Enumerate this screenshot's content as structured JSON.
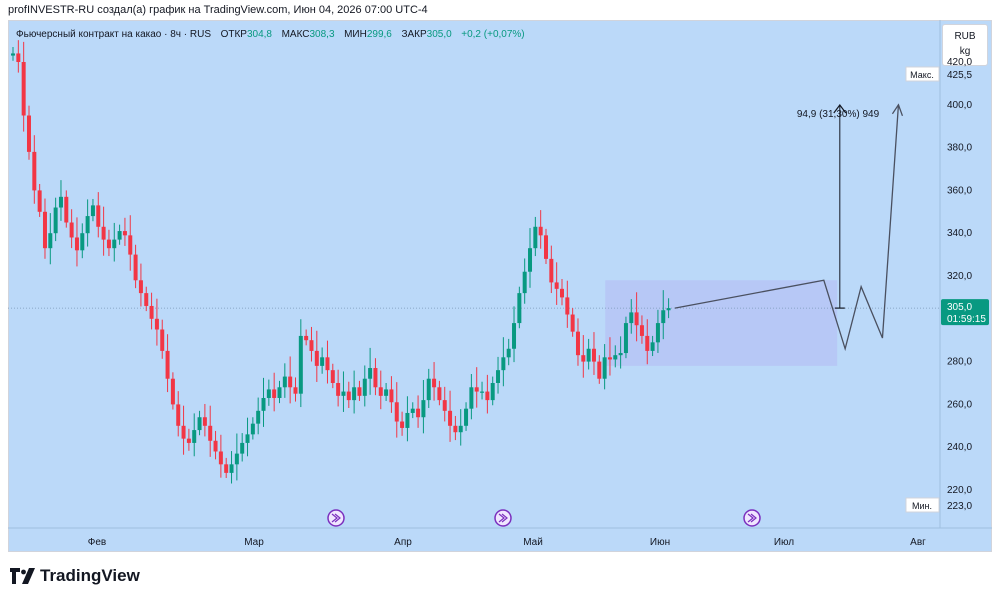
{
  "attribution": "profINVESTR-RU создал(а) график на TradingView.com, Июн 04, 2026 07:00 UTC-4",
  "legend": {
    "title": "Фьючерсный контракт на какао · 8ч · RUS",
    "open_label": "ОТКР",
    "open_value": "304,8",
    "high_label": "МАКС",
    "high_value": "308,3",
    "low_label": "МИН",
    "low_value": "299,6",
    "close_label": "ЗАКР",
    "close_value": "305,0",
    "change": "+0,2 (+0,07%)"
  },
  "units": {
    "currency": "RUB",
    "unit": "kg"
  },
  "brand": "TradingView",
  "colors": {
    "background": "#bbd9f9",
    "up": "#089981",
    "down": "#f23645",
    "last_price": "#089981",
    "projection_box": "#b7c3f5",
    "scale_tag": "#ffffff"
  },
  "icons": [
    "play-forward-icon",
    "play-forward-icon",
    "play-forward-icon",
    "tradingview-logo-icon"
  ],
  "chart_data": {
    "type": "candlestick",
    "timeframe": "8ч",
    "ylim": [
      223,
      430
    ],
    "y_ticks": [
      "420,0",
      "400,0",
      "380,0",
      "360,0",
      "340,0",
      "320,0",
      "300,0",
      "280,0",
      "260,0",
      "240,0",
      "220,0"
    ],
    "x_ticks": [
      "Фев",
      "Мар",
      "Апр",
      "Май",
      "Июн",
      "Июл",
      "Авг"
    ],
    "max_label": "Макс.",
    "max_value": "425,5",
    "min_label": "Мин.",
    "min_value": "223,0",
    "last_price": "305,0",
    "countdown": "01:59:15",
    "price_path": [
      [
        0,
        423
      ],
      [
        2,
        424
      ],
      [
        3,
        420
      ],
      [
        4,
        395
      ],
      [
        5,
        378
      ],
      [
        6,
        360
      ],
      [
        7,
        350
      ],
      [
        8,
        333
      ],
      [
        9,
        340
      ],
      [
        10,
        352
      ],
      [
        11,
        357
      ],
      [
        12,
        345
      ],
      [
        13,
        338
      ],
      [
        14,
        332
      ],
      [
        15,
        340
      ],
      [
        16,
        348
      ],
      [
        17,
        353
      ],
      [
        18,
        343
      ],
      [
        19,
        337
      ],
      [
        20,
        333
      ],
      [
        21,
        337
      ],
      [
        22,
        341
      ],
      [
        23,
        339
      ],
      [
        24,
        330
      ],
      [
        25,
        318
      ],
      [
        26,
        312
      ],
      [
        27,
        306
      ],
      [
        28,
        300
      ],
      [
        29,
        295
      ],
      [
        30,
        285
      ],
      [
        31,
        272
      ],
      [
        32,
        260
      ],
      [
        33,
        250
      ],
      [
        34,
        244
      ],
      [
        35,
        242
      ],
      [
        36,
        248
      ],
      [
        37,
        254
      ],
      [
        38,
        250
      ],
      [
        39,
        243
      ],
      [
        40,
        238
      ],
      [
        41,
        232
      ],
      [
        42,
        228
      ],
      [
        43,
        232
      ],
      [
        44,
        237
      ],
      [
        45,
        242
      ],
      [
        46,
        246
      ],
      [
        47,
        251
      ],
      [
        48,
        257
      ],
      [
        49,
        263
      ],
      [
        50,
        267
      ],
      [
        51,
        263
      ],
      [
        52,
        268
      ],
      [
        53,
        273
      ],
      [
        54,
        268
      ],
      [
        55,
        265
      ],
      [
        56,
        292
      ],
      [
        57,
        290
      ],
      [
        58,
        285
      ],
      [
        59,
        278
      ],
      [
        60,
        282
      ],
      [
        61,
        276
      ],
      [
        62,
        270
      ],
      [
        63,
        264
      ],
      [
        64,
        266
      ],
      [
        65,
        262
      ],
      [
        66,
        268
      ],
      [
        67,
        264
      ],
      [
        68,
        272
      ],
      [
        69,
        277
      ],
      [
        70,
        268
      ],
      [
        71,
        264
      ],
      [
        72,
        267
      ],
      [
        73,
        261
      ],
      [
        74,
        252
      ],
      [
        75,
        249
      ],
      [
        76,
        256
      ],
      [
        77,
        258
      ],
      [
        78,
        254
      ],
      [
        79,
        262
      ],
      [
        80,
        272
      ],
      [
        81,
        268
      ],
      [
        82,
        262
      ],
      [
        83,
        257
      ],
      [
        84,
        250
      ],
      [
        85,
        247
      ],
      [
        86,
        250
      ],
      [
        87,
        258
      ],
      [
        88,
        268
      ],
      [
        89,
        266
      ],
      [
        90,
        266
      ],
      [
        91,
        262
      ],
      [
        92,
        270
      ],
      [
        93,
        276
      ],
      [
        94,
        282
      ],
      [
        95,
        286
      ],
      [
        96,
        298
      ],
      [
        97,
        312
      ],
      [
        98,
        322
      ],
      [
        99,
        333
      ],
      [
        100,
        343
      ],
      [
        101,
        339
      ],
      [
        102,
        328
      ],
      [
        103,
        317
      ],
      [
        104,
        314
      ],
      [
        105,
        310
      ],
      [
        106,
        302
      ],
      [
        107,
        294
      ],
      [
        108,
        283
      ],
      [
        109,
        280
      ],
      [
        110,
        286
      ],
      [
        111,
        280
      ],
      [
        112,
        272
      ],
      [
        113,
        282
      ],
      [
        114,
        281
      ],
      [
        115,
        283
      ],
      [
        116,
        284
      ],
      [
        117,
        298
      ],
      [
        118,
        303
      ],
      [
        119,
        297
      ],
      [
        120,
        292
      ],
      [
        121,
        285
      ],
      [
        122,
        289
      ],
      [
        123,
        298
      ],
      [
        124,
        304
      ],
      [
        125,
        305
      ]
    ],
    "bars_total": 125,
    "projection": {
      "range_label": "94,9 (31,30%) 949",
      "box_low": 278,
      "box_high": 318,
      "zigzag": [
        [
          305,
          318
        ],
        [
          313,
          286
        ],
        [
          319,
          315
        ],
        [
          327,
          291
        ],
        [
          333,
          400
        ]
      ],
      "arrow_from": 305,
      "arrow_to": 399.9
    }
  }
}
